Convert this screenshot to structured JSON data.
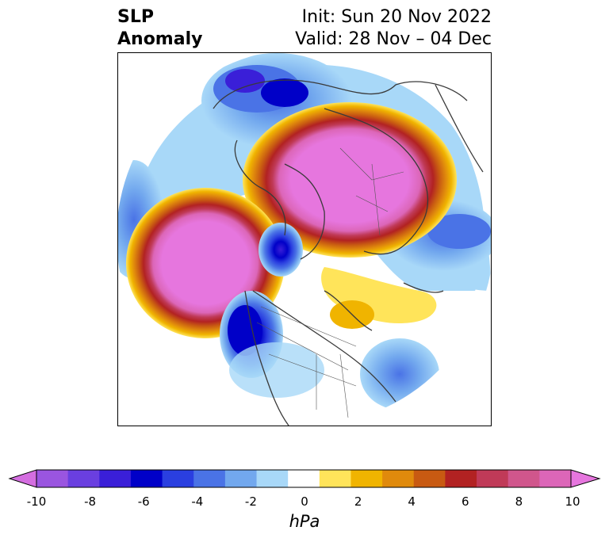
{
  "title": {
    "left_line1": "SLP",
    "left_line2": "Anomaly",
    "right_line1": "Init: Sun 20 Nov 2022",
    "right_line2": "Valid: 28 Nov – 04 Dec"
  },
  "colorbar": {
    "unit": "hPa",
    "ticks": [
      "-10",
      "-8",
      "-6",
      "-4",
      "-2",
      "0",
      "2",
      "4",
      "6",
      "8",
      "10"
    ],
    "colors": [
      "#d46ee0",
      "#9a55e0",
      "#6a3fe0",
      "#3a1fd8",
      "#0000c8",
      "#2a3fe0",
      "#4a73e6",
      "#72a8ee",
      "#a8d8f8",
      "#ffffff",
      "#ffe45a",
      "#f0b400",
      "#e08a0c",
      "#c85a12",
      "#b22222",
      "#c03a58",
      "#d0568c",
      "#dc66b8",
      "#e676de"
    ],
    "range": [
      -10,
      10
    ]
  }
}
